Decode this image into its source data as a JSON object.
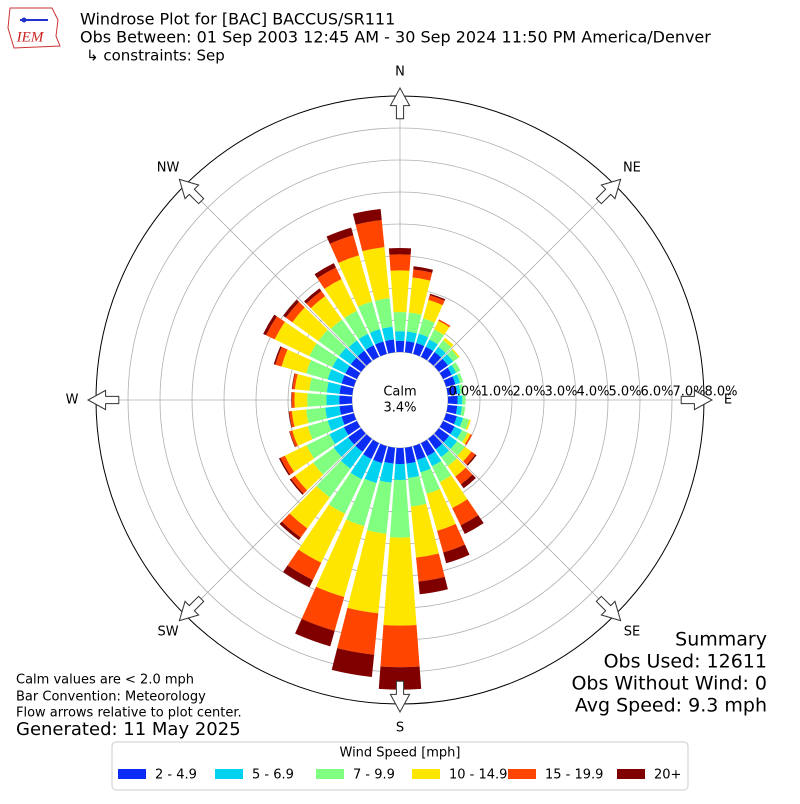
{
  "chart_data": {
    "type": "windrose",
    "title": "Windrose Plot for [BAC] BACCUS/SR111",
    "subtitle": "Obs Between: 01 Sep 2003 12:45 AM - 30 Sep 2024 11:50 PM America/Denver",
    "constraints": "↳ constraints: Sep",
    "logo_text": "IEM",
    "directions": [
      "N",
      "NE",
      "E",
      "SE",
      "S",
      "SW",
      "W",
      "NW"
    ],
    "categories": [
      0,
      10,
      20,
      30,
      40,
      50,
      60,
      70,
      80,
      90,
      100,
      110,
      120,
      130,
      140,
      150,
      160,
      170,
      180,
      190,
      200,
      210,
      220,
      230,
      240,
      250,
      260,
      270,
      280,
      290,
      300,
      310,
      320,
      330,
      340,
      350
    ],
    "ylim": [
      0,
      8
    ],
    "yticks": [
      {
        "value": 0,
        "label": "0.0%"
      },
      {
        "value": 1,
        "label": "1.0%"
      },
      {
        "value": 2,
        "label": "2.0%"
      },
      {
        "value": 3,
        "label": "3.0%"
      },
      {
        "value": 4,
        "label": "4.0%"
      },
      {
        "value": 5,
        "label": "5.0%"
      },
      {
        "value": 6,
        "label": "6.0%"
      },
      {
        "value": 7,
        "label": "7.0%"
      },
      {
        "value": 8,
        "label": "8.0%"
      }
    ],
    "grid": true,
    "calm_label": "Calm",
    "calm_value_label": "3.4%",
    "legend_title": "Wind Speed [mph]",
    "series": [
      {
        "name": "2 - 4.9",
        "color": "#0a2cf5",
        "values": [
          0.35,
          0.35,
          0.35,
          0.35,
          0.35,
          0.35,
          0.3,
          0.3,
          0.3,
          0.3,
          0.3,
          0.35,
          0.4,
          0.4,
          0.4,
          0.45,
          0.45,
          0.5,
          0.5,
          0.5,
          0.55,
          0.55,
          0.5,
          0.5,
          0.45,
          0.4,
          0.4,
          0.4,
          0.4,
          0.4,
          0.4,
          0.4,
          0.4,
          0.4,
          0.4,
          0.4
        ]
      },
      {
        "name": "5 - 6.9",
        "color": "#00d2f0",
        "values": [
          0.3,
          0.3,
          0.3,
          0.25,
          0.2,
          0.2,
          0.15,
          0.15,
          0.1,
          0.15,
          0.15,
          0.2,
          0.25,
          0.3,
          0.3,
          0.35,
          0.4,
          0.45,
          0.5,
          0.6,
          0.65,
          0.7,
          0.65,
          0.55,
          0.5,
          0.45,
          0.45,
          0.4,
          0.4,
          0.45,
          0.45,
          0.45,
          0.4,
          0.4,
          0.4,
          0.4
        ]
      },
      {
        "name": "7 - 9.9",
        "color": "#80ff80",
        "values": [
          0.6,
          0.6,
          0.5,
          0.35,
          0.25,
          0.2,
          0.15,
          0.1,
          0.1,
          0.1,
          0.1,
          0.2,
          0.2,
          0.3,
          0.35,
          0.55,
          0.7,
          0.9,
          1.8,
          1.6,
          1.4,
          1.2,
          1.1,
          0.8,
          0.8,
          0.65,
          0.6,
          0.6,
          0.55,
          0.7,
          0.8,
          0.8,
          0.8,
          0.8,
          0.9,
          0.9
        ]
      },
      {
        "name": "10 - 14.9",
        "color": "#ffe600",
        "values": [
          1.3,
          1.1,
          0.6,
          0.3,
          0.1,
          0.05,
          0,
          0,
          0,
          0,
          0,
          0.05,
          0.1,
          0.25,
          0.4,
          0.9,
          1.2,
          1.6,
          2.75,
          2.5,
          2.3,
          1.7,
          1.2,
          0.7,
          0.75,
          0.5,
          0.45,
          0.4,
          0.45,
          0.8,
          1.2,
          1.0,
          0.9,
          1.1,
          1.5,
          1.6
        ]
      },
      {
        "name": "15 - 19.9",
        "color": "#ff4500",
        "values": [
          0.5,
          0.25,
          0.15,
          0.05,
          0,
          0,
          0,
          0,
          0,
          0,
          0,
          0,
          0.05,
          0.15,
          0.3,
          0.6,
          0.7,
          0.75,
          1.3,
          1.3,
          1.1,
          0.6,
          0.35,
          0.15,
          0.15,
          0.08,
          0.08,
          0.08,
          0.08,
          0.2,
          0.3,
          0.25,
          0.2,
          0.4,
          0.65,
          0.85
        ]
      },
      {
        "name": "20+",
        "color": "#800000",
        "values": [
          0.2,
          0.1,
          0.05,
          0,
          0,
          0,
          0,
          0,
          0,
          0,
          0,
          0,
          0,
          0.05,
          0.15,
          0.3,
          0.35,
          0.4,
          0.7,
          0.7,
          0.5,
          0.25,
          0.1,
          0.05,
          0.05,
          0.02,
          0.02,
          0.02,
          0.02,
          0.05,
          0.1,
          0.1,
          0.1,
          0.15,
          0.25,
          0.35
        ]
      }
    ],
    "summary": [
      "Summary",
      "Obs Used: 12611",
      "Obs Without Wind: 0",
      "Avg Speed: 9.3 mph"
    ],
    "notes": [
      "Calm values are < 2.0 mph",
      "Bar Convention: Meteorology",
      "Flow arrows relative to plot center."
    ],
    "generated": "Generated: 11 May 2025"
  }
}
